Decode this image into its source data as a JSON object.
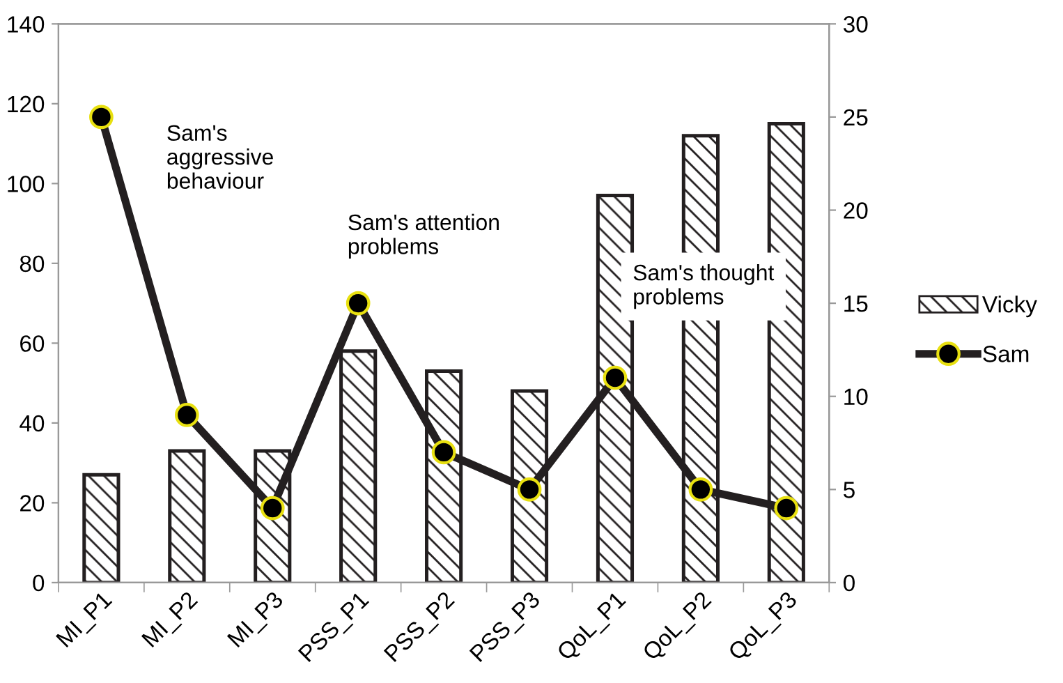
{
  "chart_data": {
    "type": "bar",
    "categories": [
      "MI_P1",
      "MI_P2",
      "MI_P3",
      "PSS_P1",
      "PSS_P2",
      "PSS_P3",
      "QoL_P1",
      "QoL_P2",
      "QoL_P3"
    ],
    "series": [
      {
        "name": "Vicky",
        "color": "#231f20",
        "values": [
          27,
          33,
          33,
          58,
          53,
          48,
          97,
          112,
          115
        ]
      },
      {
        "name": "Sam",
        "type": "line",
        "axis": "y2",
        "color": "#231f20",
        "marker": "circle",
        "values": [
          25,
          9,
          4,
          15,
          7,
          5,
          11,
          5,
          4
        ]
      }
    ],
    "ylim": [
      0,
      140
    ],
    "yticks": [
      0,
      20,
      40,
      60,
      80,
      100,
      120,
      140
    ],
    "y2lim": [
      0,
      30
    ],
    "y2ticks": [
      0,
      5,
      10,
      15,
      20,
      25,
      30
    ],
    "annotations": [
      "Sam's aggressive behaviour",
      "Sam's attention problems",
      "Sam's thought problems"
    ],
    "legend": "right",
    "grid": false
  }
}
